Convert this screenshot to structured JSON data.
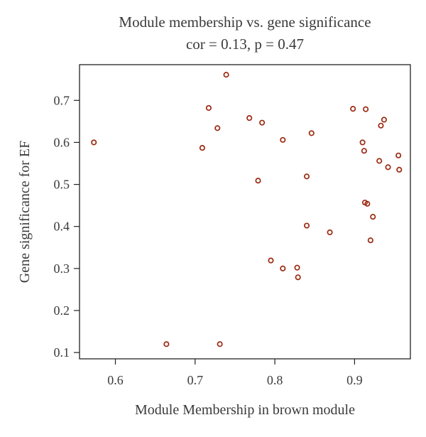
{
  "chart_data": {
    "type": "scatter",
    "title": "Module membership vs. gene significance",
    "subtitle": "cor = 0.13, p = 0.47",
    "xlabel": "Module Membership in brown module",
    "ylabel": "Gene significance for EF",
    "xlim": [
      0.555,
      0.97
    ],
    "ylim": [
      0.085,
      0.785
    ],
    "xticks": [
      0.6,
      0.7,
      0.8,
      0.9
    ],
    "yticks": [
      0.1,
      0.2,
      0.3,
      0.4,
      0.5,
      0.6,
      0.7
    ],
    "grid": false,
    "legend": "none",
    "marker_color": "#9b2a12",
    "points": [
      {
        "x": 0.573,
        "y": 0.6
      },
      {
        "x": 0.664,
        "y": 0.12
      },
      {
        "x": 0.709,
        "y": 0.587
      },
      {
        "x": 0.717,
        "y": 0.682
      },
      {
        "x": 0.728,
        "y": 0.634
      },
      {
        "x": 0.731,
        "y": 0.12
      },
      {
        "x": 0.739,
        "y": 0.761
      },
      {
        "x": 0.768,
        "y": 0.658
      },
      {
        "x": 0.779,
        "y": 0.509
      },
      {
        "x": 0.784,
        "y": 0.647
      },
      {
        "x": 0.795,
        "y": 0.319
      },
      {
        "x": 0.81,
        "y": 0.606
      },
      {
        "x": 0.81,
        "y": 0.3
      },
      {
        "x": 0.828,
        "y": 0.302
      },
      {
        "x": 0.829,
        "y": 0.279
      },
      {
        "x": 0.84,
        "y": 0.519
      },
      {
        "x": 0.84,
        "y": 0.402
      },
      {
        "x": 0.846,
        "y": 0.622
      },
      {
        "x": 0.869,
        "y": 0.386
      },
      {
        "x": 0.898,
        "y": 0.68
      },
      {
        "x": 0.91,
        "y": 0.6
      },
      {
        "x": 0.912,
        "y": 0.58
      },
      {
        "x": 0.913,
        "y": 0.457
      },
      {
        "x": 0.914,
        "y": 0.679
      },
      {
        "x": 0.916,
        "y": 0.454
      },
      {
        "x": 0.92,
        "y": 0.367
      },
      {
        "x": 0.923,
        "y": 0.423
      },
      {
        "x": 0.931,
        "y": 0.556
      },
      {
        "x": 0.933,
        "y": 0.64
      },
      {
        "x": 0.937,
        "y": 0.654
      },
      {
        "x": 0.942,
        "y": 0.541
      },
      {
        "x": 0.955,
        "y": 0.569
      },
      {
        "x": 0.956,
        "y": 0.535
      }
    ]
  }
}
